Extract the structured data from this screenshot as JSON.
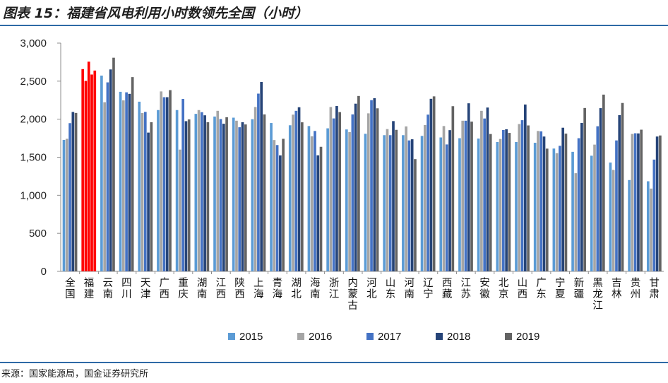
{
  "header": {
    "title": "图表 15：福建省风电利用小时数领先全国（小时）"
  },
  "footer": {
    "source": "来源：国家能源局，国金证券研究所"
  },
  "colors": {
    "s2015": "#5b9bd5",
    "s2016": "#a5a5a5",
    "s2017": "#4472c4",
    "s2018": "#264478",
    "s2019": "#636363",
    "highlight": "#ff0000",
    "header_rule": "#2e6aa6"
  },
  "chart_data": {
    "type": "bar",
    "title": "",
    "xlabel": "",
    "ylabel": "",
    "ylim": [
      0,
      3000
    ],
    "yticks": [
      "0",
      "500",
      "1,000",
      "1,500",
      "2,000",
      "2,500",
      "3,000"
    ],
    "grid": false,
    "legend_position": "bottom",
    "highlight_category": "福建",
    "categories": [
      "全国",
      "福建",
      "云南",
      "四川",
      "天津",
      "广西",
      "重庆",
      "湖南",
      "江西",
      "陕西",
      "上海",
      "青海",
      "湖北",
      "海南",
      "浙江",
      "内蒙古",
      "河北",
      "山东",
      "河南",
      "辽宁",
      "西藏",
      "江苏",
      "安徽",
      "北京",
      "山西",
      "广东",
      "宁夏",
      "新疆",
      "黑龙江",
      "吉林",
      "贵州",
      "甘肃"
    ],
    "series": [
      {
        "name": "2015",
        "values": [
          1728,
          2658,
          2573,
          2360,
          2230,
          2120,
          2120,
          2070,
          2035,
          2020,
          2000,
          1950,
          1920,
          1910,
          1880,
          1865,
          1808,
          1790,
          1790,
          1780,
          1760,
          1750,
          1745,
          1700,
          1700,
          1690,
          1614,
          1571,
          1520,
          1430,
          1200,
          1184
        ]
      },
      {
        "name": "2016",
        "values": [
          1742,
          2503,
          2223,
          2247,
          2081,
          2365,
          1600,
          2120,
          2110,
          1980,
          2160,
          1726,
          2060,
          1775,
          2160,
          1830,
          2077,
          1870,
          1905,
          1923,
          1910,
          1980,
          2110,
          1740,
          1936,
          1845,
          1553,
          1290,
          1666,
          1333,
          1806,
          1088
        ]
      },
      {
        "name": "2017",
        "values": [
          1948,
          2756,
          2484,
          2353,
          2096,
          2289,
          2266,
          2092,
          2002,
          1894,
          2336,
          1660,
          2110,
          1845,
          2010,
          2063,
          2250,
          1790,
          1721,
          2060,
          1668,
          1980,
          2009,
          1858,
          1987,
          1840,
          1650,
          1750,
          1907,
          1721,
          1815,
          1469
        ]
      },
      {
        "name": "2018",
        "values": [
          2095,
          2587,
          2654,
          2333,
          1824,
          2289,
          1974,
          2051,
          1940,
          1960,
          2489,
          1524,
          2157,
          1525,
          2173,
          2204,
          2276,
          1975,
          1736,
          2268,
          1856,
          2209,
          2153,
          1868,
          2193,
          1772,
          1888,
          1951,
          2145,
          2053,
          1813,
          1772
        ]
      },
      {
        "name": "2019",
        "values": [
          2082,
          2639,
          2808,
          2553,
          1960,
          2382,
          1997,
          1960,
          2026,
          1931,
          2063,
          1742,
          1959,
          1637,
          2093,
          2305,
          2143,
          1860,
          1475,
          2300,
          2171,
          1968,
          1805,
          1820,
          1918,
          1613,
          1810,
          2147,
          2323,
          2213,
          1862,
          1786
        ]
      }
    ]
  }
}
